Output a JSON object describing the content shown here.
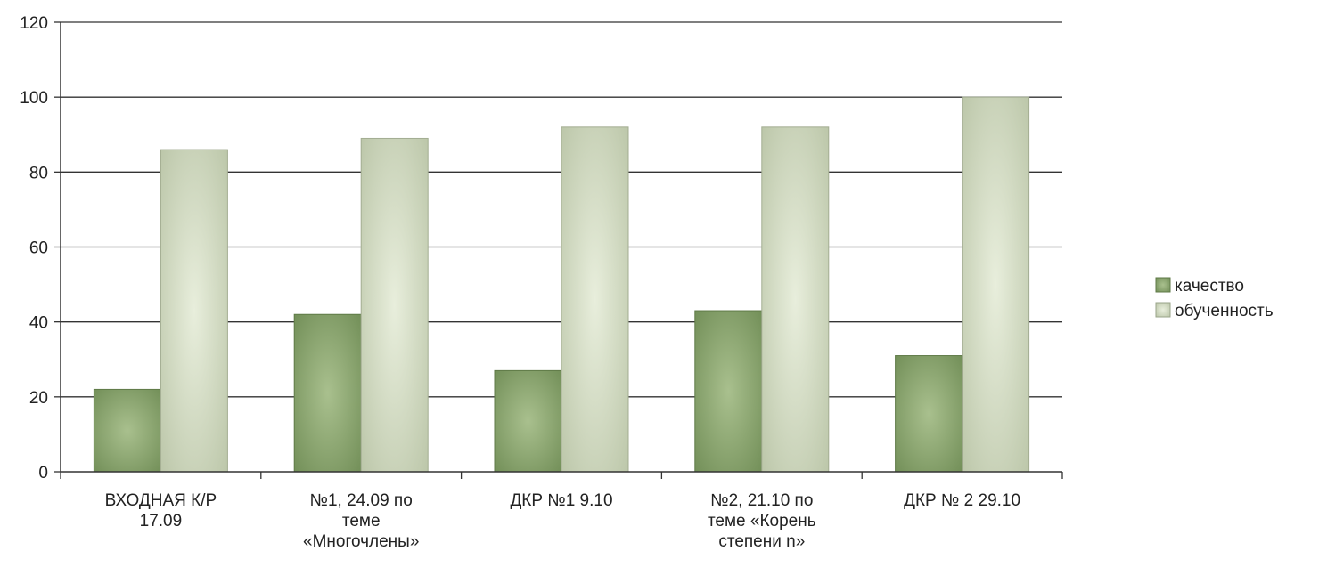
{
  "chart_data": {
    "type": "bar",
    "categories": [
      [
        "ВХОДНАЯ К/Р",
        "17.09"
      ],
      [
        "№1, 24.09 по",
        "теме",
        "«Многочлены»"
      ],
      [
        "ДКР №1    9.10"
      ],
      [
        "№2, 21.10 по",
        "теме «Корень",
        "степени n»"
      ],
      [
        "ДКР  № 2    29.10"
      ]
    ],
    "series": [
      {
        "name": "качество",
        "values": [
          22,
          42,
          27,
          43,
          31
        ],
        "color": "#7e9a62"
      },
      {
        "name": "обученность",
        "values": [
          86,
          89,
          92,
          92,
          100
        ],
        "color": "#cfd8bf"
      }
    ],
    "ylim": [
      0,
      120
    ],
    "yticks": [
      0,
      20,
      40,
      60,
      80,
      100,
      120
    ],
    "grid": true,
    "legend": "right"
  }
}
